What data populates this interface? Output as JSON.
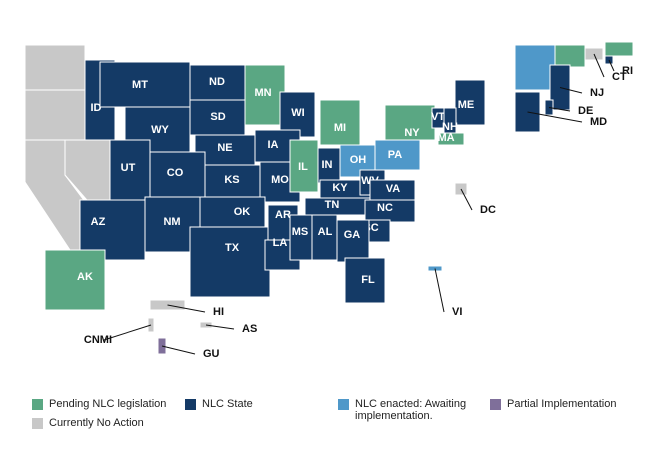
{
  "map": {
    "states": [
      {
        "label": "ID",
        "color": "#143a66"
      },
      {
        "label": "MT",
        "color": "#143a66"
      },
      {
        "label": "ND",
        "color": "#143a66"
      },
      {
        "label": "SD",
        "color": "#143a66"
      },
      {
        "label": "WY",
        "color": "#143a66"
      },
      {
        "label": "NE",
        "color": "#143a66"
      },
      {
        "label": "MN",
        "color": "#5aa783"
      },
      {
        "label": "WI",
        "color": "#143a66"
      },
      {
        "label": "MI",
        "color": "#5aa783"
      },
      {
        "label": "IA",
        "color": "#143a66"
      },
      {
        "label": "UT",
        "color": "#143a66"
      },
      {
        "label": "CO",
        "color": "#143a66"
      },
      {
        "label": "KS",
        "color": "#143a66"
      },
      {
        "label": "MO",
        "color": "#143a66"
      },
      {
        "label": "IL",
        "color": "#5aa783"
      },
      {
        "label": "IN",
        "color": "#143a66"
      },
      {
        "label": "OH",
        "color": "#4f98c9"
      },
      {
        "label": "PA",
        "color": "#4f98c9"
      },
      {
        "label": "NY",
        "color": "#5aa783"
      },
      {
        "label": "KY",
        "color": "#143a66"
      },
      {
        "label": "WV",
        "color": "#143a66"
      },
      {
        "label": "VA",
        "color": "#143a66"
      },
      {
        "label": "TN",
        "color": "#143a66"
      },
      {
        "label": "NC",
        "color": "#143a66"
      },
      {
        "label": "SC",
        "color": "#143a66"
      },
      {
        "label": "AZ",
        "color": "#143a66"
      },
      {
        "label": "NM",
        "color": "#143a66"
      },
      {
        "label": "OK",
        "color": "#143a66"
      },
      {
        "label": "TX",
        "color": "#143a66"
      },
      {
        "label": "AR",
        "color": "#143a66"
      },
      {
        "label": "LA",
        "color": "#143a66"
      },
      {
        "label": "MS",
        "color": "#143a66"
      },
      {
        "label": "AL",
        "color": "#143a66"
      },
      {
        "label": "GA",
        "color": "#143a66"
      },
      {
        "label": "FL",
        "color": "#143a66"
      },
      {
        "label": "AK",
        "color": "#5aa783"
      },
      {
        "label": "ME",
        "color": "#143a66"
      },
      {
        "label": "VT",
        "color": "#143a66"
      },
      {
        "label": "NH",
        "color": "#143a66"
      },
      {
        "label": "MA",
        "color": "#5aa783"
      },
      {
        "label": "NJ",
        "color": "#143a66"
      },
      {
        "label": "RI",
        "color": "#143a66"
      },
      {
        "label": "CT",
        "color": "#c8c8c8"
      },
      {
        "label": "DE",
        "color": "#143a66"
      },
      {
        "label": "MD",
        "color": "#143a66"
      },
      {
        "label": "DC",
        "color": "#c8c8c8"
      },
      {
        "label": "HI",
        "color": "#c8c8c8"
      },
      {
        "label": "AS",
        "color": "#c8c8c8"
      },
      {
        "label": "GU",
        "color": "#7f6f9a"
      },
      {
        "label": "CNMI",
        "color": "#c8c8c8"
      },
      {
        "label": "VI",
        "color": "#4f98c9"
      }
    ],
    "legend": [
      {
        "label": "Pending NLC legislation",
        "color": "#5aa783"
      },
      {
        "label": "NLC State",
        "color": "#143a66"
      },
      {
        "label": "NLC enacted: Awaiting implementation.",
        "color": "#4f98c9"
      },
      {
        "label": "Partial Implementation",
        "color": "#7f6f9a"
      },
      {
        "label": "Currently No Action",
        "color": "#c8c8c8"
      }
    ]
  }
}
